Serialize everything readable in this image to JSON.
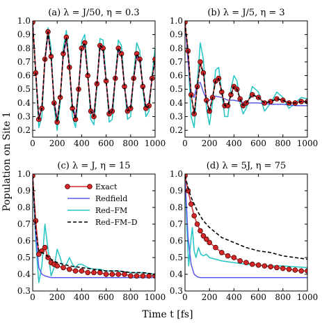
{
  "figure": {
    "ylabel": "Population on Site 1",
    "xlabel": "Time t [fs]"
  },
  "legend": {
    "entries": [
      {
        "label": "Exact",
        "color": "#d62728",
        "style": "line-circle"
      },
      {
        "label": "Redfield",
        "color": "#5a5ae6",
        "style": "solid"
      },
      {
        "label": "Red–FM",
        "color": "#22c4c4",
        "style": "solid"
      },
      {
        "label": "Red–FM–D",
        "color": "#000000",
        "style": "dashed"
      }
    ]
  },
  "chart_data": [
    {
      "type": "line",
      "title": "(a) λ = J/50, η = 0.3",
      "xlim": [
        0,
        1000
      ],
      "ylim": [
        0.15,
        1.0
      ],
      "xticks": [
        0,
        200,
        400,
        600,
        800,
        1000
      ],
      "yticks": [
        0.2,
        0.3,
        0.4,
        0.5,
        0.6,
        0.7,
        0.8,
        0.9,
        1.0
      ],
      "series": [
        {
          "name": "Exact",
          "x": [
            0,
            25,
            50,
            75,
            100,
            125,
            150,
            175,
            200,
            225,
            250,
            275,
            300,
            325,
            350,
            375,
            400,
            425,
            450,
            475,
            500,
            525,
            550,
            575,
            600,
            625,
            650,
            675,
            700,
            725,
            750,
            775,
            800,
            825,
            850,
            875,
            900,
            925,
            950,
            975,
            1000
          ],
          "y": [
            0.99,
            0.62,
            0.28,
            0.36,
            0.72,
            0.92,
            0.74,
            0.4,
            0.26,
            0.44,
            0.76,
            0.88,
            0.66,
            0.36,
            0.28,
            0.5,
            0.8,
            0.84,
            0.6,
            0.34,
            0.3,
            0.54,
            0.82,
            0.8,
            0.56,
            0.32,
            0.34,
            0.58,
            0.8,
            0.76,
            0.52,
            0.34,
            0.36,
            0.58,
            0.76,
            0.72,
            0.52,
            0.36,
            0.38,
            0.58,
            0.72
          ]
        },
        {
          "name": "Redfield",
          "x": [
            0,
            25,
            50,
            75,
            100,
            125,
            150,
            175,
            200,
            225,
            250,
            275,
            300,
            325,
            350,
            375,
            400,
            425,
            450,
            475,
            500,
            525,
            550,
            575,
            600,
            625,
            650,
            675,
            700,
            725,
            750,
            775,
            800,
            825,
            850,
            875,
            900,
            925,
            950,
            975,
            1000
          ],
          "y": [
            0.99,
            0.62,
            0.3,
            0.36,
            0.7,
            0.9,
            0.74,
            0.42,
            0.28,
            0.44,
            0.74,
            0.86,
            0.66,
            0.38,
            0.3,
            0.5,
            0.78,
            0.82,
            0.6,
            0.36,
            0.32,
            0.54,
            0.8,
            0.78,
            0.56,
            0.34,
            0.36,
            0.58,
            0.78,
            0.74,
            0.52,
            0.36,
            0.38,
            0.58,
            0.74,
            0.7,
            0.52,
            0.38,
            0.4,
            0.58,
            0.7
          ]
        },
        {
          "name": "Red–FM",
          "x": [
            0,
            25,
            50,
            75,
            100,
            125,
            150,
            175,
            200,
            225,
            250,
            275,
            300,
            325,
            350,
            375,
            400,
            425,
            450,
            475,
            500,
            525,
            550,
            575,
            600,
            625,
            650,
            675,
            700,
            725,
            750,
            775,
            800,
            825,
            850,
            875,
            900,
            925,
            950,
            975,
            1000
          ],
          "y": [
            0.99,
            0.6,
            0.22,
            0.3,
            0.72,
            0.95,
            0.8,
            0.38,
            0.2,
            0.4,
            0.8,
            0.93,
            0.68,
            0.3,
            0.22,
            0.48,
            0.85,
            0.9,
            0.62,
            0.28,
            0.24,
            0.52,
            0.87,
            0.86,
            0.58,
            0.26,
            0.28,
            0.58,
            0.86,
            0.82,
            0.52,
            0.28,
            0.3,
            0.6,
            0.84,
            0.78,
            0.5,
            0.3,
            0.34,
            0.6,
            0.8
          ]
        },
        {
          "name": "Red–FM–D",
          "x": [
            0,
            25,
            50,
            75,
            100,
            125,
            150,
            175,
            200,
            225,
            250,
            275,
            300,
            325,
            350,
            375,
            400,
            425,
            450,
            475,
            500,
            525,
            550,
            575,
            600,
            625,
            650,
            675,
            700,
            725,
            750,
            775,
            800,
            825,
            850,
            875,
            900,
            925,
            950,
            975,
            1000
          ],
          "y": [
            0.99,
            0.62,
            0.28,
            0.36,
            0.72,
            0.92,
            0.74,
            0.4,
            0.26,
            0.44,
            0.76,
            0.88,
            0.66,
            0.36,
            0.28,
            0.5,
            0.8,
            0.84,
            0.6,
            0.34,
            0.3,
            0.54,
            0.82,
            0.8,
            0.56,
            0.32,
            0.34,
            0.58,
            0.8,
            0.76,
            0.52,
            0.34,
            0.36,
            0.58,
            0.76,
            0.72,
            0.52,
            0.36,
            0.38,
            0.58,
            0.72
          ]
        }
      ]
    },
    {
      "type": "line",
      "title": "(b) λ = J/5, η = 3",
      "xlim": [
        0,
        1000
      ],
      "ylim": [
        0.15,
        1.0
      ],
      "xticks": [
        0,
        200,
        400,
        600,
        800,
        1000
      ],
      "yticks": [
        0.2,
        0.3,
        0.4,
        0.5,
        0.6,
        0.7,
        0.8,
        0.9,
        1.0
      ],
      "series": [
        {
          "name": "Exact",
          "x": [
            0,
            25,
            50,
            75,
            100,
            125,
            150,
            175,
            200,
            225,
            250,
            275,
            300,
            325,
            350,
            375,
            400,
            425,
            450,
            475,
            500,
            550,
            600,
            650,
            700,
            750,
            800,
            850,
            900,
            950,
            1000
          ],
          "y": [
            0.99,
            0.78,
            0.46,
            0.32,
            0.52,
            0.7,
            0.62,
            0.42,
            0.34,
            0.44,
            0.56,
            0.58,
            0.48,
            0.38,
            0.38,
            0.46,
            0.52,
            0.5,
            0.43,
            0.38,
            0.4,
            0.46,
            0.44,
            0.4,
            0.41,
            0.43,
            0.42,
            0.4,
            0.4,
            0.41,
            0.41
          ]
        },
        {
          "name": "Redfield",
          "x": [
            0,
            25,
            50,
            75,
            100,
            125,
            150,
            175,
            200,
            250,
            300,
            350,
            400,
            450,
            500,
            600,
            700,
            800,
            900,
            1000
          ],
          "y": [
            0.99,
            0.7,
            0.46,
            0.44,
            0.54,
            0.55,
            0.48,
            0.43,
            0.42,
            0.45,
            0.44,
            0.42,
            0.42,
            0.41,
            0.4,
            0.4,
            0.39,
            0.39,
            0.38,
            0.38
          ]
        },
        {
          "name": "Red–FM",
          "x": [
            0,
            25,
            50,
            75,
            100,
            125,
            150,
            175,
            200,
            225,
            250,
            275,
            300,
            325,
            350,
            375,
            400,
            425,
            450,
            475,
            500,
            550,
            600,
            650,
            700,
            750,
            800,
            850,
            900,
            950,
            1000
          ],
          "y": [
            0.99,
            0.74,
            0.3,
            0.22,
            0.55,
            0.84,
            0.72,
            0.36,
            0.24,
            0.4,
            0.64,
            0.66,
            0.48,
            0.3,
            0.3,
            0.5,
            0.6,
            0.56,
            0.4,
            0.32,
            0.36,
            0.52,
            0.48,
            0.34,
            0.4,
            0.48,
            0.44,
            0.36,
            0.4,
            0.44,
            0.43
          ]
        },
        {
          "name": "Red–FM–D",
          "x": [
            0,
            25,
            50,
            75,
            100,
            125,
            150,
            175,
            200,
            225,
            250,
            275,
            300,
            325,
            350,
            375,
            400,
            425,
            450,
            475,
            500,
            550,
            600,
            650,
            700,
            750,
            800,
            850,
            900,
            950,
            1000
          ],
          "y": [
            0.99,
            0.78,
            0.46,
            0.32,
            0.52,
            0.68,
            0.62,
            0.42,
            0.34,
            0.44,
            0.56,
            0.58,
            0.48,
            0.38,
            0.38,
            0.46,
            0.52,
            0.5,
            0.43,
            0.38,
            0.4,
            0.46,
            0.44,
            0.4,
            0.41,
            0.43,
            0.42,
            0.4,
            0.4,
            0.41,
            0.41
          ]
        }
      ]
    },
    {
      "type": "line",
      "title": "(c) λ = J, η = 15",
      "xlim": [
        0,
        1000
      ],
      "ylim": [
        0.3,
        1.0
      ],
      "xticks": [
        0,
        200,
        400,
        600,
        800,
        1000
      ],
      "yticks": [
        0.3,
        0.4,
        0.5,
        0.6,
        0.7,
        0.8,
        0.9,
        1.0
      ],
      "series": [
        {
          "name": "Exact",
          "x": [
            0,
            25,
            50,
            75,
            100,
            125,
            150,
            175,
            200,
            250,
            300,
            350,
            400,
            450,
            500,
            550,
            600,
            650,
            700,
            750,
            800,
            850,
            900,
            950,
            1000
          ],
          "y": [
            0.99,
            0.72,
            0.52,
            0.54,
            0.56,
            0.5,
            0.47,
            0.46,
            0.45,
            0.44,
            0.43,
            0.42,
            0.42,
            0.41,
            0.41,
            0.41,
            0.4,
            0.4,
            0.4,
            0.4,
            0.39,
            0.39,
            0.39,
            0.39,
            0.39
          ]
        },
        {
          "name": "Redfield",
          "x": [
            0,
            25,
            50,
            75,
            100,
            125,
            150,
            200,
            300,
            400,
            600,
            800,
            1000
          ],
          "y": [
            0.99,
            0.64,
            0.44,
            0.4,
            0.39,
            0.385,
            0.38,
            0.38,
            0.38,
            0.38,
            0.38,
            0.38,
            0.38
          ]
        },
        {
          "name": "Red–FM",
          "x": [
            0,
            25,
            50,
            75,
            100,
            125,
            150,
            175,
            200,
            225,
            250,
            275,
            300,
            325,
            350,
            375,
            400,
            450,
            500,
            550,
            600,
            700,
            800,
            900,
            1000
          ],
          "y": [
            0.99,
            0.6,
            0.35,
            0.45,
            0.7,
            0.55,
            0.39,
            0.44,
            0.55,
            0.5,
            0.43,
            0.46,
            0.5,
            0.46,
            0.44,
            0.46,
            0.46,
            0.44,
            0.43,
            0.43,
            0.42,
            0.42,
            0.41,
            0.41,
            0.4
          ]
        },
        {
          "name": "Red–FM–D",
          "x": [
            0,
            25,
            50,
            75,
            100,
            150,
            200,
            250,
            300,
            400,
            500,
            600,
            700,
            800,
            900,
            1000
          ],
          "y": [
            0.99,
            0.66,
            0.54,
            0.53,
            0.52,
            0.49,
            0.47,
            0.46,
            0.45,
            0.44,
            0.43,
            0.42,
            0.42,
            0.41,
            0.41,
            0.4
          ]
        }
      ]
    },
    {
      "type": "line",
      "title": "(d) λ = 5J, η = 75",
      "xlim": [
        0,
        1000
      ],
      "ylim": [
        0.3,
        1.0
      ],
      "xticks": [
        0,
        200,
        400,
        600,
        800,
        1000
      ],
      "yticks": [
        0.3,
        0.4,
        0.5,
        0.6,
        0.7,
        0.8,
        0.9,
        1.0
      ],
      "series": [
        {
          "name": "Exact",
          "x": [
            0,
            25,
            50,
            75,
            100,
            125,
            150,
            175,
            200,
            250,
            300,
            350,
            400,
            450,
            500,
            550,
            600,
            650,
            700,
            750,
            800,
            850,
            900,
            950,
            1000
          ],
          "y": [
            0.99,
            0.9,
            0.82,
            0.75,
            0.7,
            0.66,
            0.63,
            0.61,
            0.59,
            0.56,
            0.53,
            0.51,
            0.5,
            0.48,
            0.47,
            0.46,
            0.455,
            0.45,
            0.445,
            0.44,
            0.435,
            0.43,
            0.425,
            0.42,
            0.42
          ]
        },
        {
          "name": "Redfield",
          "x": [
            0,
            25,
            50,
            75,
            100,
            125,
            150,
            200,
            300,
            400,
            600,
            800,
            1000
          ],
          "y": [
            0.99,
            0.62,
            0.46,
            0.4,
            0.385,
            0.38,
            0.38,
            0.38,
            0.38,
            0.38,
            0.38,
            0.38,
            0.38
          ]
        },
        {
          "name": "Red–FM",
          "x": [
            0,
            15,
            30,
            45,
            60,
            75,
            90,
            110,
            130,
            150,
            175,
            200,
            250,
            300,
            400,
            500,
            600,
            700,
            800,
            900,
            1000
          ],
          "y": [
            0.99,
            0.7,
            0.45,
            0.58,
            0.68,
            0.54,
            0.5,
            0.56,
            0.52,
            0.51,
            0.52,
            0.5,
            0.49,
            0.48,
            0.47,
            0.46,
            0.455,
            0.45,
            0.45,
            0.445,
            0.44
          ]
        },
        {
          "name": "Red–FM–D",
          "x": [
            0,
            25,
            50,
            100,
            150,
            200,
            250,
            300,
            400,
            500,
            600,
            700,
            800,
            900,
            1000
          ],
          "y": [
            0.99,
            0.92,
            0.86,
            0.78,
            0.72,
            0.68,
            0.65,
            0.62,
            0.59,
            0.56,
            0.54,
            0.53,
            0.51,
            0.5,
            0.49
          ]
        }
      ]
    }
  ]
}
